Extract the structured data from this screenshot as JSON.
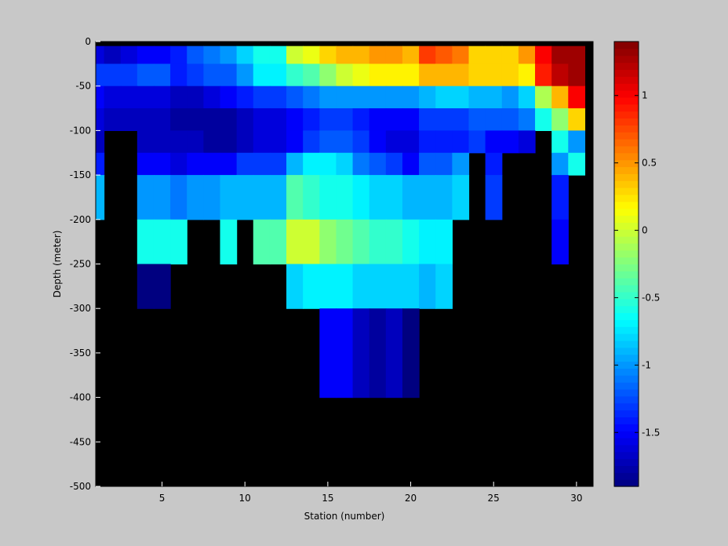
{
  "chart_data": {
    "type": "heatmap",
    "xlabel": "Station (number)",
    "ylabel": "Depth (meter)",
    "xlim": [
      1,
      31
    ],
    "ylim": [
      -500,
      0
    ],
    "xticks": [
      5,
      10,
      15,
      20,
      25,
      30
    ],
    "yticks": [
      0,
      -50,
      -100,
      -150,
      -200,
      -250,
      -300,
      -350,
      -400,
      -450,
      -500
    ],
    "stations": [
      1,
      2,
      3,
      4,
      5,
      6,
      7,
      8,
      9,
      10,
      11,
      12,
      13,
      14,
      15,
      16,
      17,
      18,
      19,
      20,
      21,
      22,
      23,
      24,
      25,
      26,
      27,
      28,
      29,
      30
    ],
    "depth_layers": [
      {
        "top": 0,
        "bottom": -5
      },
      {
        "top": -5,
        "bottom": -25
      },
      {
        "top": -25,
        "bottom": -50
      },
      {
        "top": -50,
        "bottom": -75
      },
      {
        "top": -75,
        "bottom": -100
      },
      {
        "top": -100,
        "bottom": -125
      },
      {
        "top": -125,
        "bottom": -150
      },
      {
        "top": -150,
        "bottom": -200
      },
      {
        "top": -200,
        "bottom": -250
      },
      {
        "top": -250,
        "bottom": -300
      },
      {
        "top": -300,
        "bottom": -400
      },
      {
        "top": -400,
        "bottom": -500
      }
    ],
    "values": [
      [
        null,
        null,
        null,
        null,
        null,
        null,
        null,
        null,
        null,
        null,
        null,
        null,
        null,
        null,
        null,
        null,
        null,
        null,
        null,
        null,
        null,
        null,
        null,
        null,
        null,
        null,
        null,
        null,
        null,
        null
      ],
      [
        -1.6,
        -1.7,
        -1.6,
        -1.5,
        -1.5,
        -1.4,
        -1.2,
        -1.1,
        -1.0,
        -0.8,
        -0.6,
        -0.6,
        0.0,
        0.1,
        0.3,
        0.4,
        0.4,
        0.5,
        0.5,
        0.4,
        0.8,
        0.7,
        0.6,
        0.3,
        0.3,
        0.3,
        0.5,
        1.0,
        1.3,
        1.3
      ],
      [
        -1.3,
        -1.3,
        -1.3,
        -1.2,
        -1.2,
        -1.4,
        -1.3,
        -1.2,
        -1.2,
        -1.0,
        -0.7,
        -0.7,
        -0.5,
        -0.4,
        -0.2,
        0.0,
        0.1,
        0.2,
        0.2,
        0.2,
        0.4,
        0.4,
        0.4,
        0.3,
        0.3,
        0.3,
        0.2,
        0.9,
        1.2,
        1.3
      ],
      [
        -1.5,
        -1.6,
        -1.6,
        -1.6,
        -1.6,
        -1.7,
        -1.7,
        -1.6,
        -1.5,
        -1.4,
        -1.3,
        -1.3,
        -1.2,
        -1.1,
        -1.0,
        -1.0,
        -1.0,
        -1.0,
        -1.0,
        -1.0,
        -0.9,
        -0.8,
        -0.8,
        -0.9,
        -0.9,
        -1.0,
        -0.8,
        -0.1,
        0.4,
        1.0
      ],
      [
        -1.6,
        -1.7,
        -1.7,
        -1.7,
        -1.7,
        -1.8,
        -1.8,
        -1.8,
        -1.8,
        -1.7,
        -1.6,
        -1.6,
        -1.5,
        -1.4,
        -1.3,
        -1.3,
        -1.4,
        -1.5,
        -1.5,
        -1.5,
        -1.3,
        -1.3,
        -1.3,
        -1.2,
        -1.2,
        -1.2,
        -1.1,
        -0.6,
        -0.2,
        0.3
      ],
      [
        -1.7,
        null,
        null,
        -1.7,
        -1.7,
        -1.7,
        -1.7,
        -1.8,
        -1.8,
        -1.7,
        -1.6,
        -1.6,
        -1.5,
        -1.3,
        -1.2,
        -1.2,
        -1.3,
        -1.5,
        -1.6,
        -1.6,
        -1.4,
        -1.4,
        -1.4,
        -1.3,
        -1.5,
        -1.5,
        -1.6,
        null,
        -0.6,
        -1.0
      ],
      [
        -1.4,
        null,
        null,
        -1.5,
        -1.5,
        -1.6,
        -1.5,
        -1.5,
        -1.5,
        -1.3,
        -1.3,
        -1.3,
        -0.9,
        -0.7,
        -0.7,
        -0.8,
        -1.1,
        -1.2,
        -1.3,
        -1.5,
        -1.2,
        -1.2,
        -1.0,
        null,
        -1.4,
        null,
        null,
        null,
        -1.0,
        -0.6
      ],
      [
        -0.9,
        null,
        null,
        -1.0,
        -1.0,
        -1.1,
        -1.0,
        -1.0,
        -0.9,
        -0.9,
        -0.9,
        -0.9,
        -0.4,
        -0.5,
        -0.6,
        -0.6,
        -0.7,
        -0.8,
        -0.8,
        -0.9,
        -0.9,
        -0.9,
        -0.8,
        null,
        -1.3,
        null,
        null,
        null,
        -1.4,
        null
      ],
      [
        null,
        null,
        null,
        -0.6,
        -0.6,
        -0.6,
        null,
        null,
        -0.6,
        null,
        -0.4,
        -0.4,
        0.0,
        0.0,
        -0.2,
        -0.3,
        -0.4,
        -0.5,
        -0.5,
        -0.6,
        -0.7,
        -0.7,
        null,
        null,
        null,
        null,
        null,
        null,
        -1.5,
        null
      ],
      [
        null,
        null,
        null,
        -1.9,
        -1.9,
        null,
        null,
        null,
        null,
        null,
        null,
        null,
        -0.8,
        -0.7,
        -0.7,
        -0.7,
        -0.8,
        -0.8,
        -0.8,
        -0.8,
        -0.9,
        -0.8,
        null,
        null,
        null,
        null,
        null,
        null,
        null,
        null
      ],
      [
        null,
        null,
        null,
        null,
        null,
        null,
        null,
        null,
        null,
        null,
        null,
        null,
        null,
        null,
        -1.5,
        -1.5,
        -1.7,
        -1.8,
        -1.7,
        -1.9,
        null,
        null,
        null,
        null,
        null,
        null,
        null,
        null,
        null,
        null
      ],
      [
        null,
        null,
        null,
        null,
        null,
        null,
        null,
        null,
        null,
        null,
        null,
        null,
        null,
        null,
        null,
        null,
        null,
        null,
        null,
        null,
        null,
        null,
        null,
        null,
        null,
        null,
        null,
        null,
        null,
        null
      ]
    ],
    "colorbar": {
      "min": -1.9,
      "max": 1.4,
      "ticks": [
        1,
        0.5,
        0,
        -0.5,
        -1,
        -1.5
      ],
      "tick_labels": [
        "1",
        "0.5",
        "0",
        "-0.5",
        "-1",
        "-1.5"
      ],
      "colormap": "jet"
    },
    "nodata_color": "#000000",
    "background_color": "#c8c8c8",
    "grid": false
  }
}
